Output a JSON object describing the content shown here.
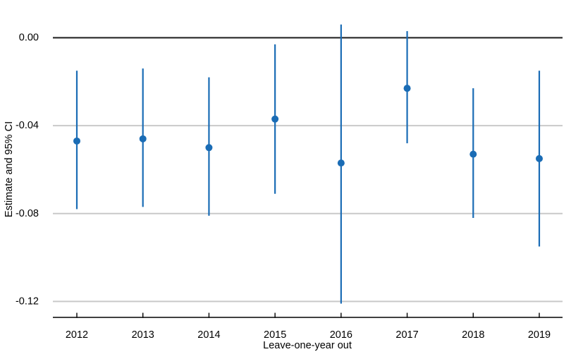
{
  "page": {
    "background": "#ffffff"
  },
  "chart_data": {
    "type": "scatter",
    "variant": "coefficient-plot-point-estimates-with-95-ci",
    "title": "",
    "xlabel": "Leave-one-year out",
    "ylabel": "Estimate and 95% CI",
    "categories": [
      "2012",
      "2013",
      "2014",
      "2015",
      "2016",
      "2017",
      "2018",
      "2019"
    ],
    "series": [
      {
        "name": "Estimate",
        "values": [
          -0.047,
          -0.046,
          -0.05,
          -0.037,
          -0.057,
          -0.023,
          -0.053,
          -0.055
        ],
        "ci_upper": [
          -0.015,
          -0.014,
          -0.018,
          -0.003,
          0.006,
          0.003,
          -0.023,
          -0.015
        ],
        "ci_lower": [
          -0.078,
          -0.077,
          -0.081,
          -0.071,
          -0.121,
          -0.048,
          -0.082,
          -0.095
        ]
      }
    ],
    "y_ticks": [
      0,
      -0.04,
      -0.08,
      -0.12
    ],
    "y_tick_labels": [
      "0.00",
      "-0.04",
      "-0.08",
      "-0.12"
    ],
    "ylim": [
      -0.127,
      0.017
    ],
    "reference_line": 0,
    "grid": "horizontal-gridlines-at-y-ticks",
    "legend": "none",
    "colors": {
      "point": "#1a6cb5",
      "ci": "#1a6cb5",
      "gridline": "#c9c9c9",
      "reference": "#1a1a1a",
      "axis": "#000000",
      "text": "#000000"
    }
  }
}
